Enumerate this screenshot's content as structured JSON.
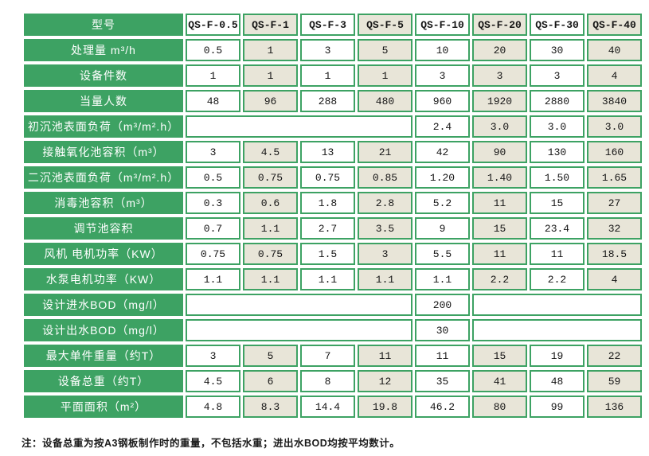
{
  "colors": {
    "page_bg": "#ffffff",
    "green": "#3da263",
    "beige": "#e8e5d8",
    "white": "#ffffff",
    "label_text": "#ffffff",
    "cell_text": "#141414",
    "note_text": "#1a1a1a"
  },
  "table": {
    "header": {
      "label": "型号",
      "models": [
        "QS-F-0.5",
        "QS-F-1",
        "QS-F-3",
        "QS-F-5",
        "QS-F-10",
        "QS-F-20",
        "QS-F-30",
        "QS-F-40"
      ]
    },
    "rows": [
      {
        "label": "处理量 m³/h",
        "cells": [
          {
            "v": "0.5"
          },
          {
            "v": "1"
          },
          {
            "v": "3"
          },
          {
            "v": "5"
          },
          {
            "v": "10"
          },
          {
            "v": "20"
          },
          {
            "v": "30"
          },
          {
            "v": "40"
          }
        ]
      },
      {
        "label": "设备件数",
        "cells": [
          {
            "v": "1"
          },
          {
            "v": "1"
          },
          {
            "v": "1"
          },
          {
            "v": "1"
          },
          {
            "v": "3"
          },
          {
            "v": "3"
          },
          {
            "v": "3"
          },
          {
            "v": "4"
          }
        ]
      },
      {
        "label": "当量人数",
        "cells": [
          {
            "v": "48"
          },
          {
            "v": "96"
          },
          {
            "v": "288"
          },
          {
            "v": "480"
          },
          {
            "v": "960"
          },
          {
            "v": "1920"
          },
          {
            "v": "2880"
          },
          {
            "v": "3840"
          }
        ]
      },
      {
        "label": "初沉池表面负荷（m³/m².h）",
        "cells": [
          {
            "v": "",
            "span": 4
          },
          {
            "v": "2.4"
          },
          {
            "v": "3.0"
          },
          {
            "v": "3.0"
          },
          {
            "v": "3.0"
          }
        ]
      },
      {
        "label": "接触氧化池容积（m³）",
        "cells": [
          {
            "v": "3"
          },
          {
            "v": "4.5"
          },
          {
            "v": "13"
          },
          {
            "v": "21"
          },
          {
            "v": "42"
          },
          {
            "v": "90"
          },
          {
            "v": "130"
          },
          {
            "v": "160"
          }
        ]
      },
      {
        "label": "二沉池表面负荷（m³/m².h）",
        "cells": [
          {
            "v": "0.5"
          },
          {
            "v": "0.75"
          },
          {
            "v": "0.75"
          },
          {
            "v": "0.85"
          },
          {
            "v": "1.20"
          },
          {
            "v": "1.40"
          },
          {
            "v": "1.50"
          },
          {
            "v": "1.65"
          }
        ]
      },
      {
        "label": "消毒池容积（m³）",
        "cells": [
          {
            "v": "0.3"
          },
          {
            "v": "0.6"
          },
          {
            "v": "1.8"
          },
          {
            "v": "2.8"
          },
          {
            "v": "5.2"
          },
          {
            "v": "11"
          },
          {
            "v": "15"
          },
          {
            "v": "27"
          }
        ]
      },
      {
        "label": "调节池容积",
        "cells": [
          {
            "v": "0.7"
          },
          {
            "v": "1.1"
          },
          {
            "v": "2.7"
          },
          {
            "v": "3.5"
          },
          {
            "v": "9"
          },
          {
            "v": "15"
          },
          {
            "v": "23.4"
          },
          {
            "v": "32"
          }
        ]
      },
      {
        "label": "风机 电机功率（KW）",
        "cells": [
          {
            "v": "0.75"
          },
          {
            "v": "0.75"
          },
          {
            "v": "1.5"
          },
          {
            "v": "3"
          },
          {
            "v": "5.5"
          },
          {
            "v": "11"
          },
          {
            "v": "11"
          },
          {
            "v": "18.5"
          }
        ]
      },
      {
        "label": "水泵电机功率（KW）",
        "cells": [
          {
            "v": "1.1"
          },
          {
            "v": "1.1"
          },
          {
            "v": "1.1"
          },
          {
            "v": "1.1"
          },
          {
            "v": "1.1"
          },
          {
            "v": "2.2"
          },
          {
            "v": "2.2"
          },
          {
            "v": "4"
          }
        ]
      },
      {
        "label": "设计进水BOD（mg/l）",
        "cells": [
          {
            "v": "",
            "span": 4
          },
          {
            "v": "200"
          },
          {
            "v": "",
            "span": 3
          }
        ]
      },
      {
        "label": "设计出水BOD（mg/l）",
        "cells": [
          {
            "v": "",
            "span": 4
          },
          {
            "v": "30"
          },
          {
            "v": "",
            "span": 3
          }
        ]
      },
      {
        "label": "最大单件重量（约T）",
        "cells": [
          {
            "v": "3"
          },
          {
            "v": "5"
          },
          {
            "v": "7"
          },
          {
            "v": "11"
          },
          {
            "v": "11"
          },
          {
            "v": "15"
          },
          {
            "v": "19"
          },
          {
            "v": "22"
          }
        ]
      },
      {
        "label": "设备总重（约T）",
        "cells": [
          {
            "v": "4.5"
          },
          {
            "v": "6"
          },
          {
            "v": "8"
          },
          {
            "v": "12"
          },
          {
            "v": "35"
          },
          {
            "v": "41"
          },
          {
            "v": "48"
          },
          {
            "v": "59"
          }
        ]
      },
      {
        "label": "平面面积（m²）",
        "cells": [
          {
            "v": "4.8"
          },
          {
            "v": "8.3"
          },
          {
            "v": "14.4"
          },
          {
            "v": "19.8"
          },
          {
            "v": "46.2"
          },
          {
            "v": "80"
          },
          {
            "v": "99"
          },
          {
            "v": "136"
          }
        ]
      }
    ]
  },
  "note": "注：设备总重为按A3钢板制作时的重量，不包括水重；进出水BOD均按平均数计。"
}
